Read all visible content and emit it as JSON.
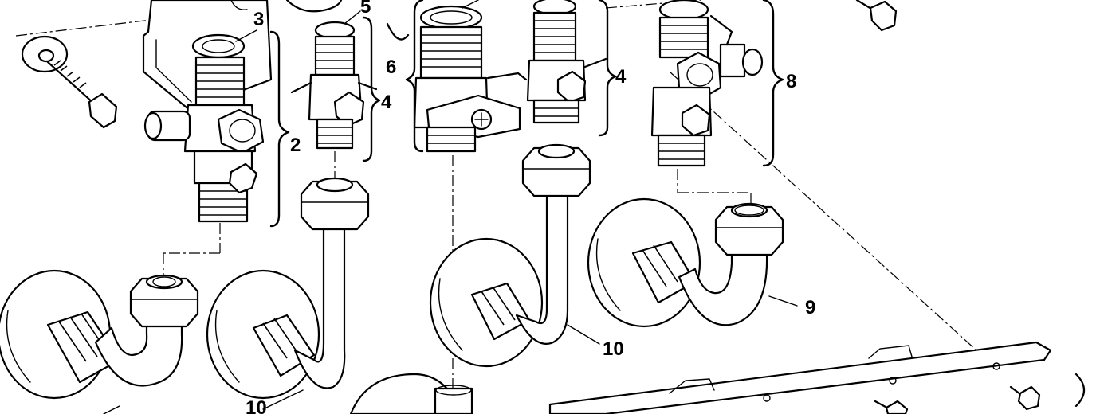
{
  "diagram": {
    "callouts": {
      "c2": "2",
      "c3": "3",
      "c4a": "4",
      "c4b": "4",
      "c5": "5",
      "c6": "6",
      "c8": "8",
      "c9": "9",
      "c10a": "10",
      "c10b": "10"
    }
  }
}
